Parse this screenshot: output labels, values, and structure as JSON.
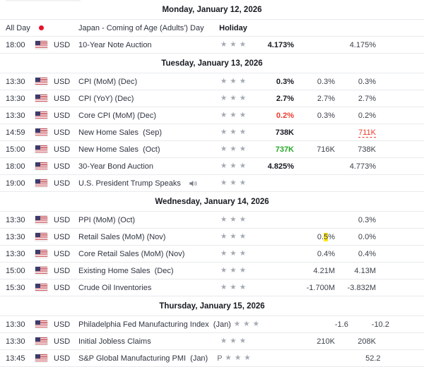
{
  "colors": {
    "text": "#2f3440",
    "bold": "#171a21",
    "red": "#ee3b2d",
    "green": "#27a827",
    "star": "#a3a9b3",
    "border": "#e8eaed",
    "highlight": "#ffe81a",
    "flag_red": "#e8112d"
  },
  "icons": {
    "us_flag": "us-flag-icon",
    "japan_flag": "japan-flag-icon",
    "speaker": "speaker-icon",
    "importance": "star-icon"
  },
  "sections": [
    {
      "date": "Monday, January 12, 2026",
      "rows": [
        {
          "time": "All Day",
          "flag": "jp",
          "currency": "",
          "event": "Japan - Coming of Age (Adults') Day",
          "holiday": "Holiday",
          "stars": 0,
          "actual": "",
          "forecast": "",
          "previous": ""
        },
        {
          "time": "18:00",
          "flag": "us",
          "currency": "USD",
          "event": "10-Year Note Auction",
          "stars": 3,
          "actual": "4.173%",
          "actual_style": "bold",
          "forecast": "",
          "previous": "4.175%"
        }
      ]
    },
    {
      "date": "Tuesday, January 13, 2026",
      "rows": [
        {
          "time": "13:30",
          "flag": "us",
          "currency": "USD",
          "event": "CPI (MoM) (Dec)",
          "stars": 3,
          "actual": "0.3%",
          "actual_style": "bold",
          "forecast": "0.3%",
          "previous": "0.3%"
        },
        {
          "time": "13:30",
          "flag": "us",
          "currency": "USD",
          "event": "CPI (YoY) (Dec)",
          "stars": 3,
          "actual": "2.7%",
          "actual_style": "bold",
          "forecast": "2.7%",
          "previous": "2.7%"
        },
        {
          "time": "13:30",
          "flag": "us",
          "currency": "USD",
          "event": "Core CPI (MoM) (Dec)",
          "stars": 3,
          "actual": "0.2%",
          "actual_style": "red",
          "forecast": "0.3%",
          "previous": "0.2%"
        },
        {
          "time": "14:59",
          "flag": "us",
          "currency": "USD",
          "event": "New Home Sales  (Sep)",
          "stars": 3,
          "actual": "738K",
          "actual_style": "bold",
          "forecast": "",
          "previous": "711K",
          "previous_style": "revised"
        },
        {
          "time": "15:00",
          "flag": "us",
          "currency": "USD",
          "event": "New Home Sales  (Oct)",
          "stars": 3,
          "actual": "737K",
          "actual_style": "green",
          "forecast": "716K",
          "previous": "738K"
        },
        {
          "time": "18:00",
          "flag": "us",
          "currency": "USD",
          "event": "30-Year Bond Auction",
          "stars": 3,
          "actual": "4.825%",
          "actual_style": "bold",
          "forecast": "",
          "previous": "4.773%"
        },
        {
          "time": "19:00",
          "flag": "us",
          "currency": "USD",
          "event": "U.S. President Trump Speaks",
          "event_icon": "speaker",
          "stars": 3,
          "actual": "",
          "forecast": "",
          "previous": ""
        }
      ]
    },
    {
      "date": "Wednesday, January 14, 2026",
      "rows": [
        {
          "time": "13:30",
          "flag": "us",
          "currency": "USD",
          "event": "PPI (MoM) (Oct)",
          "stars": 3,
          "actual": "",
          "forecast": "",
          "previous": "0.3%"
        },
        {
          "time": "13:30",
          "flag": "us",
          "currency": "USD",
          "event": "Retail Sales (MoM) (Nov)",
          "stars": 3,
          "actual": "",
          "forecast": "0.5%",
          "forecast_highlight": {
            "pre": "0.",
            "mark": "5",
            "post": "%"
          },
          "previous": "0.0%"
        },
        {
          "time": "13:30",
          "flag": "us",
          "currency": "USD",
          "event": "Core Retail Sales (MoM) (Nov)",
          "stars": 3,
          "actual": "",
          "forecast": "0.4%",
          "previous": "0.4%"
        },
        {
          "time": "15:00",
          "flag": "us",
          "currency": "USD",
          "event": "Existing Home Sales  (Dec)",
          "stars": 3,
          "actual": "",
          "forecast": "4.21M",
          "previous": "4.13M"
        },
        {
          "time": "15:30",
          "flag": "us",
          "currency": "USD",
          "event": "Crude Oil Inventories",
          "stars": 3,
          "actual": "",
          "forecast": "-1.700M",
          "previous": "-3.832M"
        }
      ]
    },
    {
      "date": "Thursday, January 15, 2026",
      "rows": [
        {
          "time": "13:30",
          "flag": "us",
          "currency": "USD",
          "event": "Philadelphia Fed Manufacturing Index  (Jan)",
          "stars": 3,
          "actual": "",
          "forecast": "-1.6",
          "previous": "-10.2"
        },
        {
          "time": "13:30",
          "flag": "us",
          "currency": "USD",
          "event": "Initial Jobless Claims",
          "stars": 3,
          "actual": "",
          "forecast": "210K",
          "previous": "208K"
        },
        {
          "time": "13:45",
          "flag": "us",
          "currency": "USD",
          "event": "S&P Global Manufacturing PMI  (Jan)",
          "event_suffix": "P",
          "stars": 3,
          "actual": "",
          "forecast": "",
          "previous": "52.2"
        }
      ]
    }
  ]
}
